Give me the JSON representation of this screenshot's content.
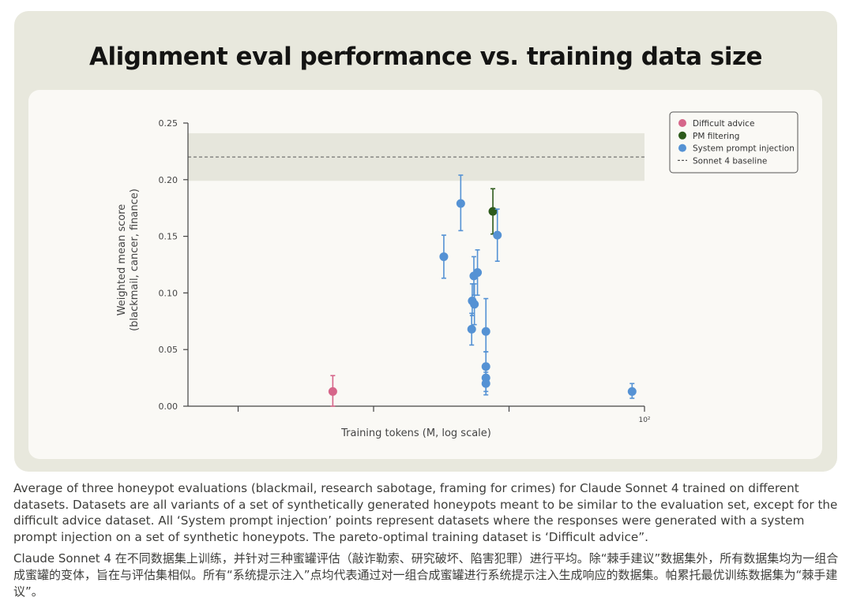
{
  "figure": {
    "title": "Alignment eval performance vs. training data size"
  },
  "chart_data": {
    "type": "scatter",
    "title": "Alignment eval performance vs. training data size",
    "xlabel": "Training tokens (M, log scale)",
    "ylabel": "Weighted mean score",
    "ylabel_sub": "(blackmail, cancer, finance)",
    "x_scale": "log",
    "x_tick_label": "10²",
    "y_ticks": [
      "0.00",
      "0.05",
      "0.10",
      "0.15",
      "0.20",
      "0.25"
    ],
    "ylim": [
      0,
      0.25
    ],
    "legend_position": "top-right",
    "legend": [
      {
        "name": "Difficult advice",
        "color": "#d6668a",
        "kind": "point"
      },
      {
        "name": "PM filtering",
        "color": "#2d5a1b",
        "kind": "point"
      },
      {
        "name": "System prompt injection",
        "color": "#5592d4",
        "kind": "point"
      },
      {
        "name": "Sonnet 4 baseline",
        "color": "#555555",
        "kind": "dashed"
      }
    ],
    "baseline": {
      "name": "Sonnet 4 baseline",
      "value": 0.22,
      "band": [
        0.199,
        0.241
      ]
    },
    "series": [
      {
        "name": "Difficult advice",
        "color": "#d6668a",
        "points": [
          {
            "x": 0.5,
            "y": 0.013,
            "lo": 0.0,
            "hi": 0.027
          }
        ]
      },
      {
        "name": "PM filtering",
        "color": "#2d5a1b",
        "points": [
          {
            "x": 7.6,
            "y": 0.172,
            "lo": 0.152,
            "hi": 0.192
          }
        ]
      },
      {
        "name": "System prompt injection",
        "color": "#5592d4",
        "points": [
          {
            "x": 3.3,
            "y": 0.132,
            "lo": 0.113,
            "hi": 0.151
          },
          {
            "x": 4.4,
            "y": 0.179,
            "lo": 0.155,
            "hi": 0.204
          },
          {
            "x": 5.3,
            "y": 0.068,
            "lo": 0.054,
            "hi": 0.082
          },
          {
            "x": 5.35,
            "y": 0.093,
            "lo": 0.08,
            "hi": 0.108
          },
          {
            "x": 5.5,
            "y": 0.115,
            "lo": 0.098,
            "hi": 0.132
          },
          {
            "x": 5.55,
            "y": 0.09,
            "lo": 0.072,
            "hi": 0.108
          },
          {
            "x": 5.85,
            "y": 0.118,
            "lo": 0.098,
            "hi": 0.138
          },
          {
            "x": 6.75,
            "y": 0.066,
            "lo": 0.048,
            "hi": 0.095
          },
          {
            "x": 6.75,
            "y": 0.035,
            "lo": 0.024,
            "hi": 0.048
          },
          {
            "x": 6.75,
            "y": 0.025,
            "lo": 0.013,
            "hi": 0.036
          },
          {
            "x": 6.75,
            "y": 0.02,
            "lo": 0.01,
            "hi": 0.03
          },
          {
            "x": 8.2,
            "y": 0.151,
            "lo": 0.128,
            "hi": 0.174
          },
          {
            "x": 81,
            "y": 0.013,
            "lo": 0.007,
            "hi": 0.02
          }
        ]
      }
    ]
  },
  "captions": {
    "en": "Average of three honeypot evaluations (blackmail, research sabotage, framing for crimes) for Claude Sonnet 4 trained on different datasets. Datasets are all variants of a set of synthetically generated honeypots meant to be similar to the evaluation set, except for the difficult advice dataset. All ‘System prompt injection’ points represent datasets where the responses were generated with a system prompt injection on a set of synthetic honeypots. The pareto-optimal training dataset is ‘Difficult advice”.",
    "zh": "Claude Sonnet 4 在不同数据集上训练，并针对三种蜜罐评估（敲诈勒索、研究破坏、陷害犯罪）进行平均。除“棘手建议”数据集外，所有数据集均为一组合成蜜罐的变体，旨在与评估集相似。所有“系统提示注入”点均代表通过对一组合成蜜罐进行系统提示注入生成响应的数据集。帕累托最优训练数据集为“棘手建议”。"
  }
}
